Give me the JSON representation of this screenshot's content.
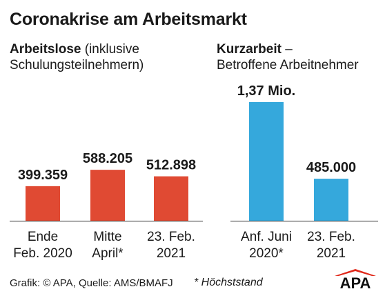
{
  "title": "Coronakrise am Arbeitsmarkt",
  "left_panel": {
    "heading_bold": "Arbeitslose",
    "heading_rest": " (inklusive",
    "heading_line2": "Schulungsteilnehmern)"
  },
  "right_panel": {
    "heading_bold": "Kurzarbeit",
    "heading_rest": " –",
    "heading_line2": "Betroffene Arbeitnehmer"
  },
  "chart_data": [
    {
      "type": "bar",
      "title": "Arbeitslose (inklusive Schulungsteilnehmern)",
      "categories": [
        "Ende Feb. 2020",
        "Mitte April*",
        "23. Feb. 2021"
      ],
      "category_lines": [
        [
          "Ende",
          "Feb. 2020"
        ],
        [
          "Mitte",
          "April*"
        ],
        [
          "23. Feb.",
          "2021"
        ]
      ],
      "values": [
        399359,
        588205,
        512898
      ],
      "value_labels": [
        "399.359",
        "588.205",
        "512.898"
      ],
      "color": "#e04a33"
    },
    {
      "type": "bar",
      "title": "Kurzarbeit – Betroffene Arbeitnehmer",
      "categories": [
        "Anf. Juni 2020*",
        "23. Feb. 2021"
      ],
      "category_lines": [
        [
          "Anf. Juni",
          "2020*"
        ],
        [
          "23. Feb.",
          "2021"
        ]
      ],
      "values": [
        1370000,
        485000
      ],
      "value_labels": [
        "1,37 Mio.",
        "485.000"
      ],
      "color": "#35a8dc"
    }
  ],
  "footer": {
    "source": "Grafik: © APA, Quelle: AMS/BMAFJ",
    "footnote": "* Höchststand"
  },
  "logo": {
    "text": "APA",
    "color": "#e0281a"
  }
}
